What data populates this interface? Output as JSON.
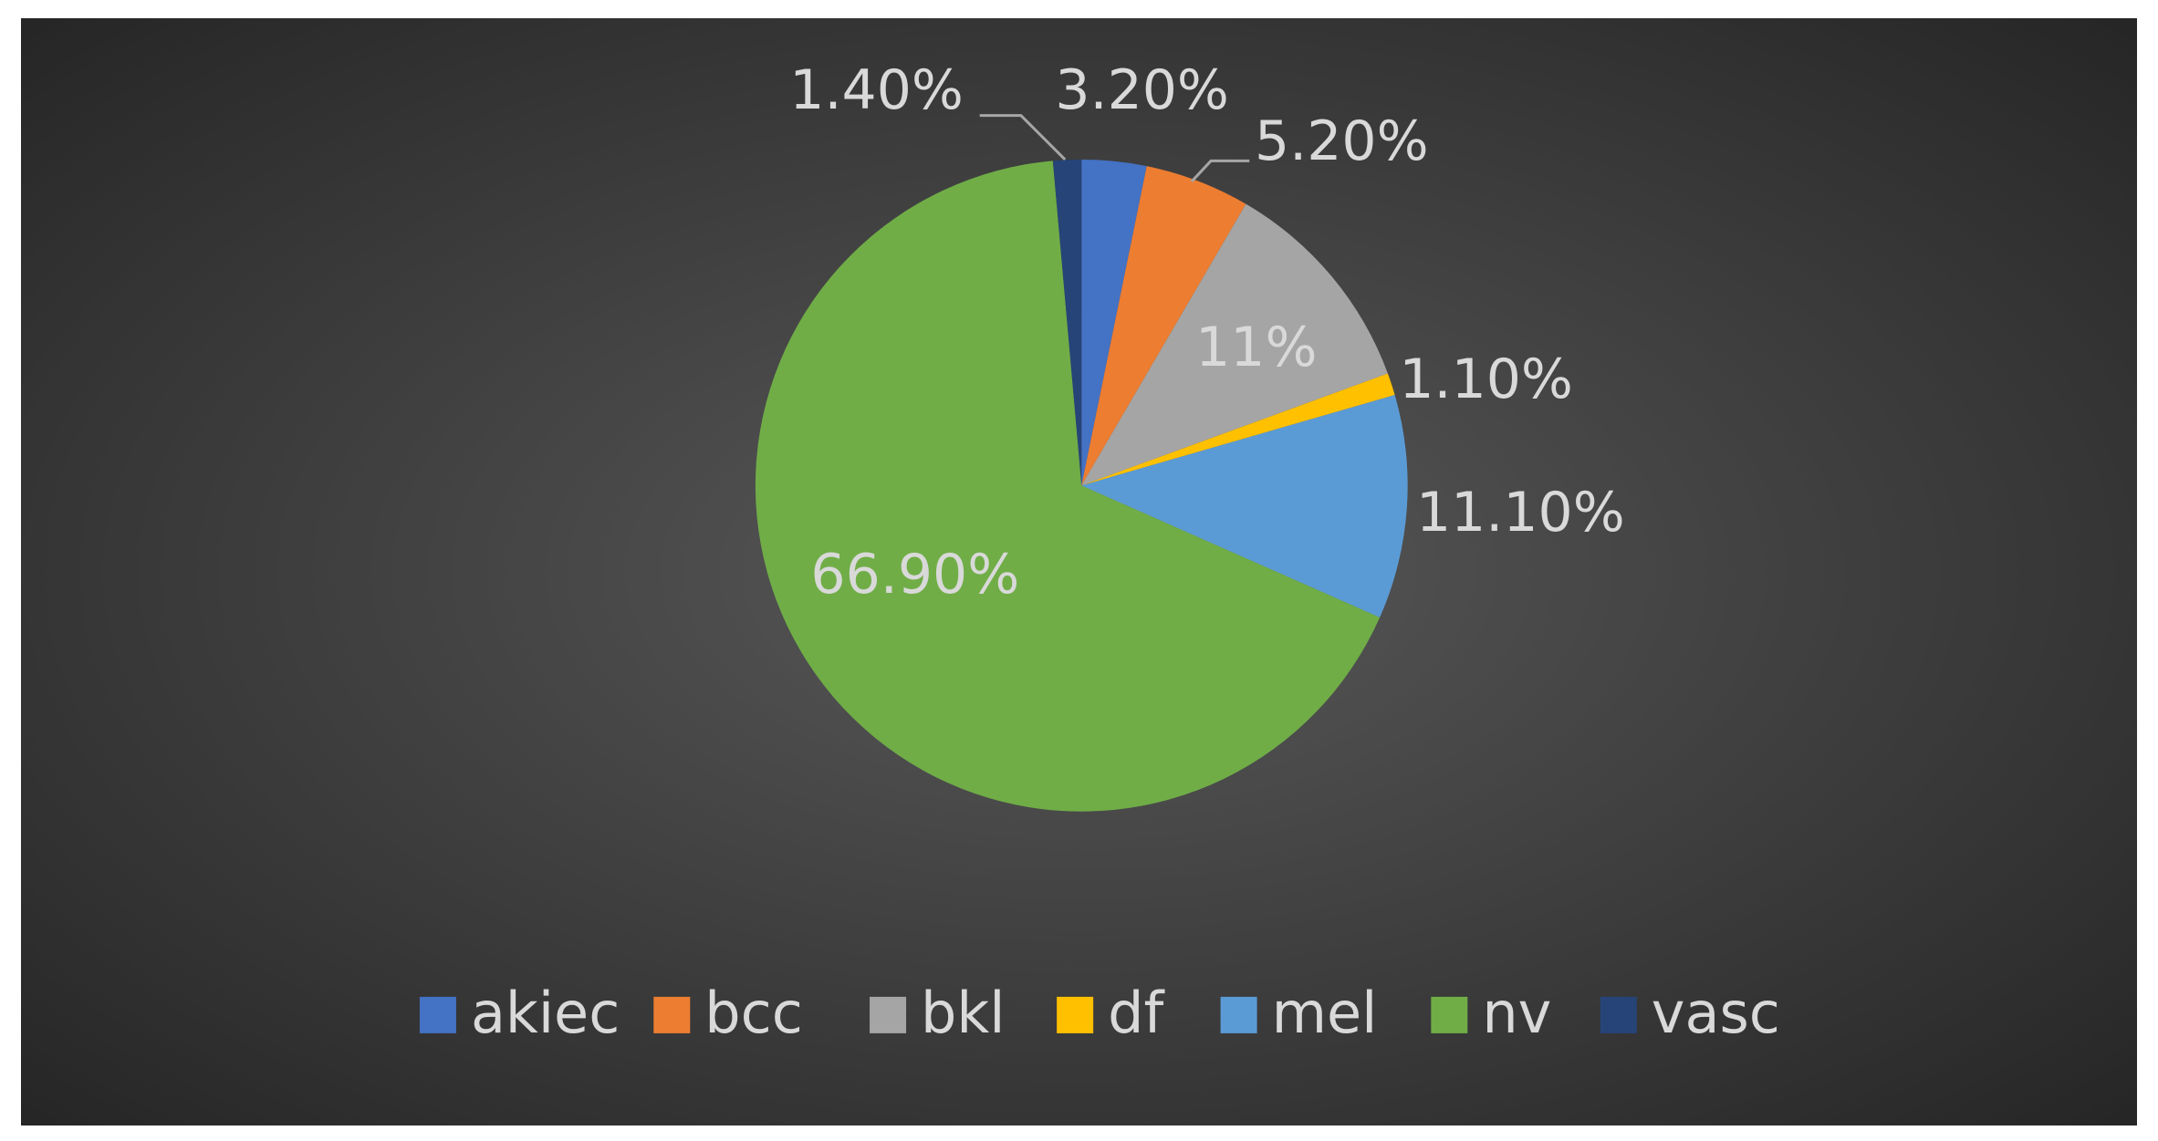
{
  "chart_data": {
    "type": "pie",
    "categories": [
      "akiec",
      "bcc",
      "bkl",
      "df",
      "mel",
      "nv",
      "vasc"
    ],
    "values": [
      3.2,
      5.2,
      11,
      1.1,
      11.1,
      66.9,
      1.4
    ],
    "value_labels": [
      "3.20%",
      "5.20%",
      "11%",
      "1.10%",
      "11.10%",
      "66.90%",
      "1.40%"
    ],
    "colors": [
      "#4472c4",
      "#ed7d31",
      "#a5a5a5",
      "#ffc000",
      "#5b9bd5",
      "#70ad47",
      "#264478"
    ],
    "legend": "bottom"
  }
}
